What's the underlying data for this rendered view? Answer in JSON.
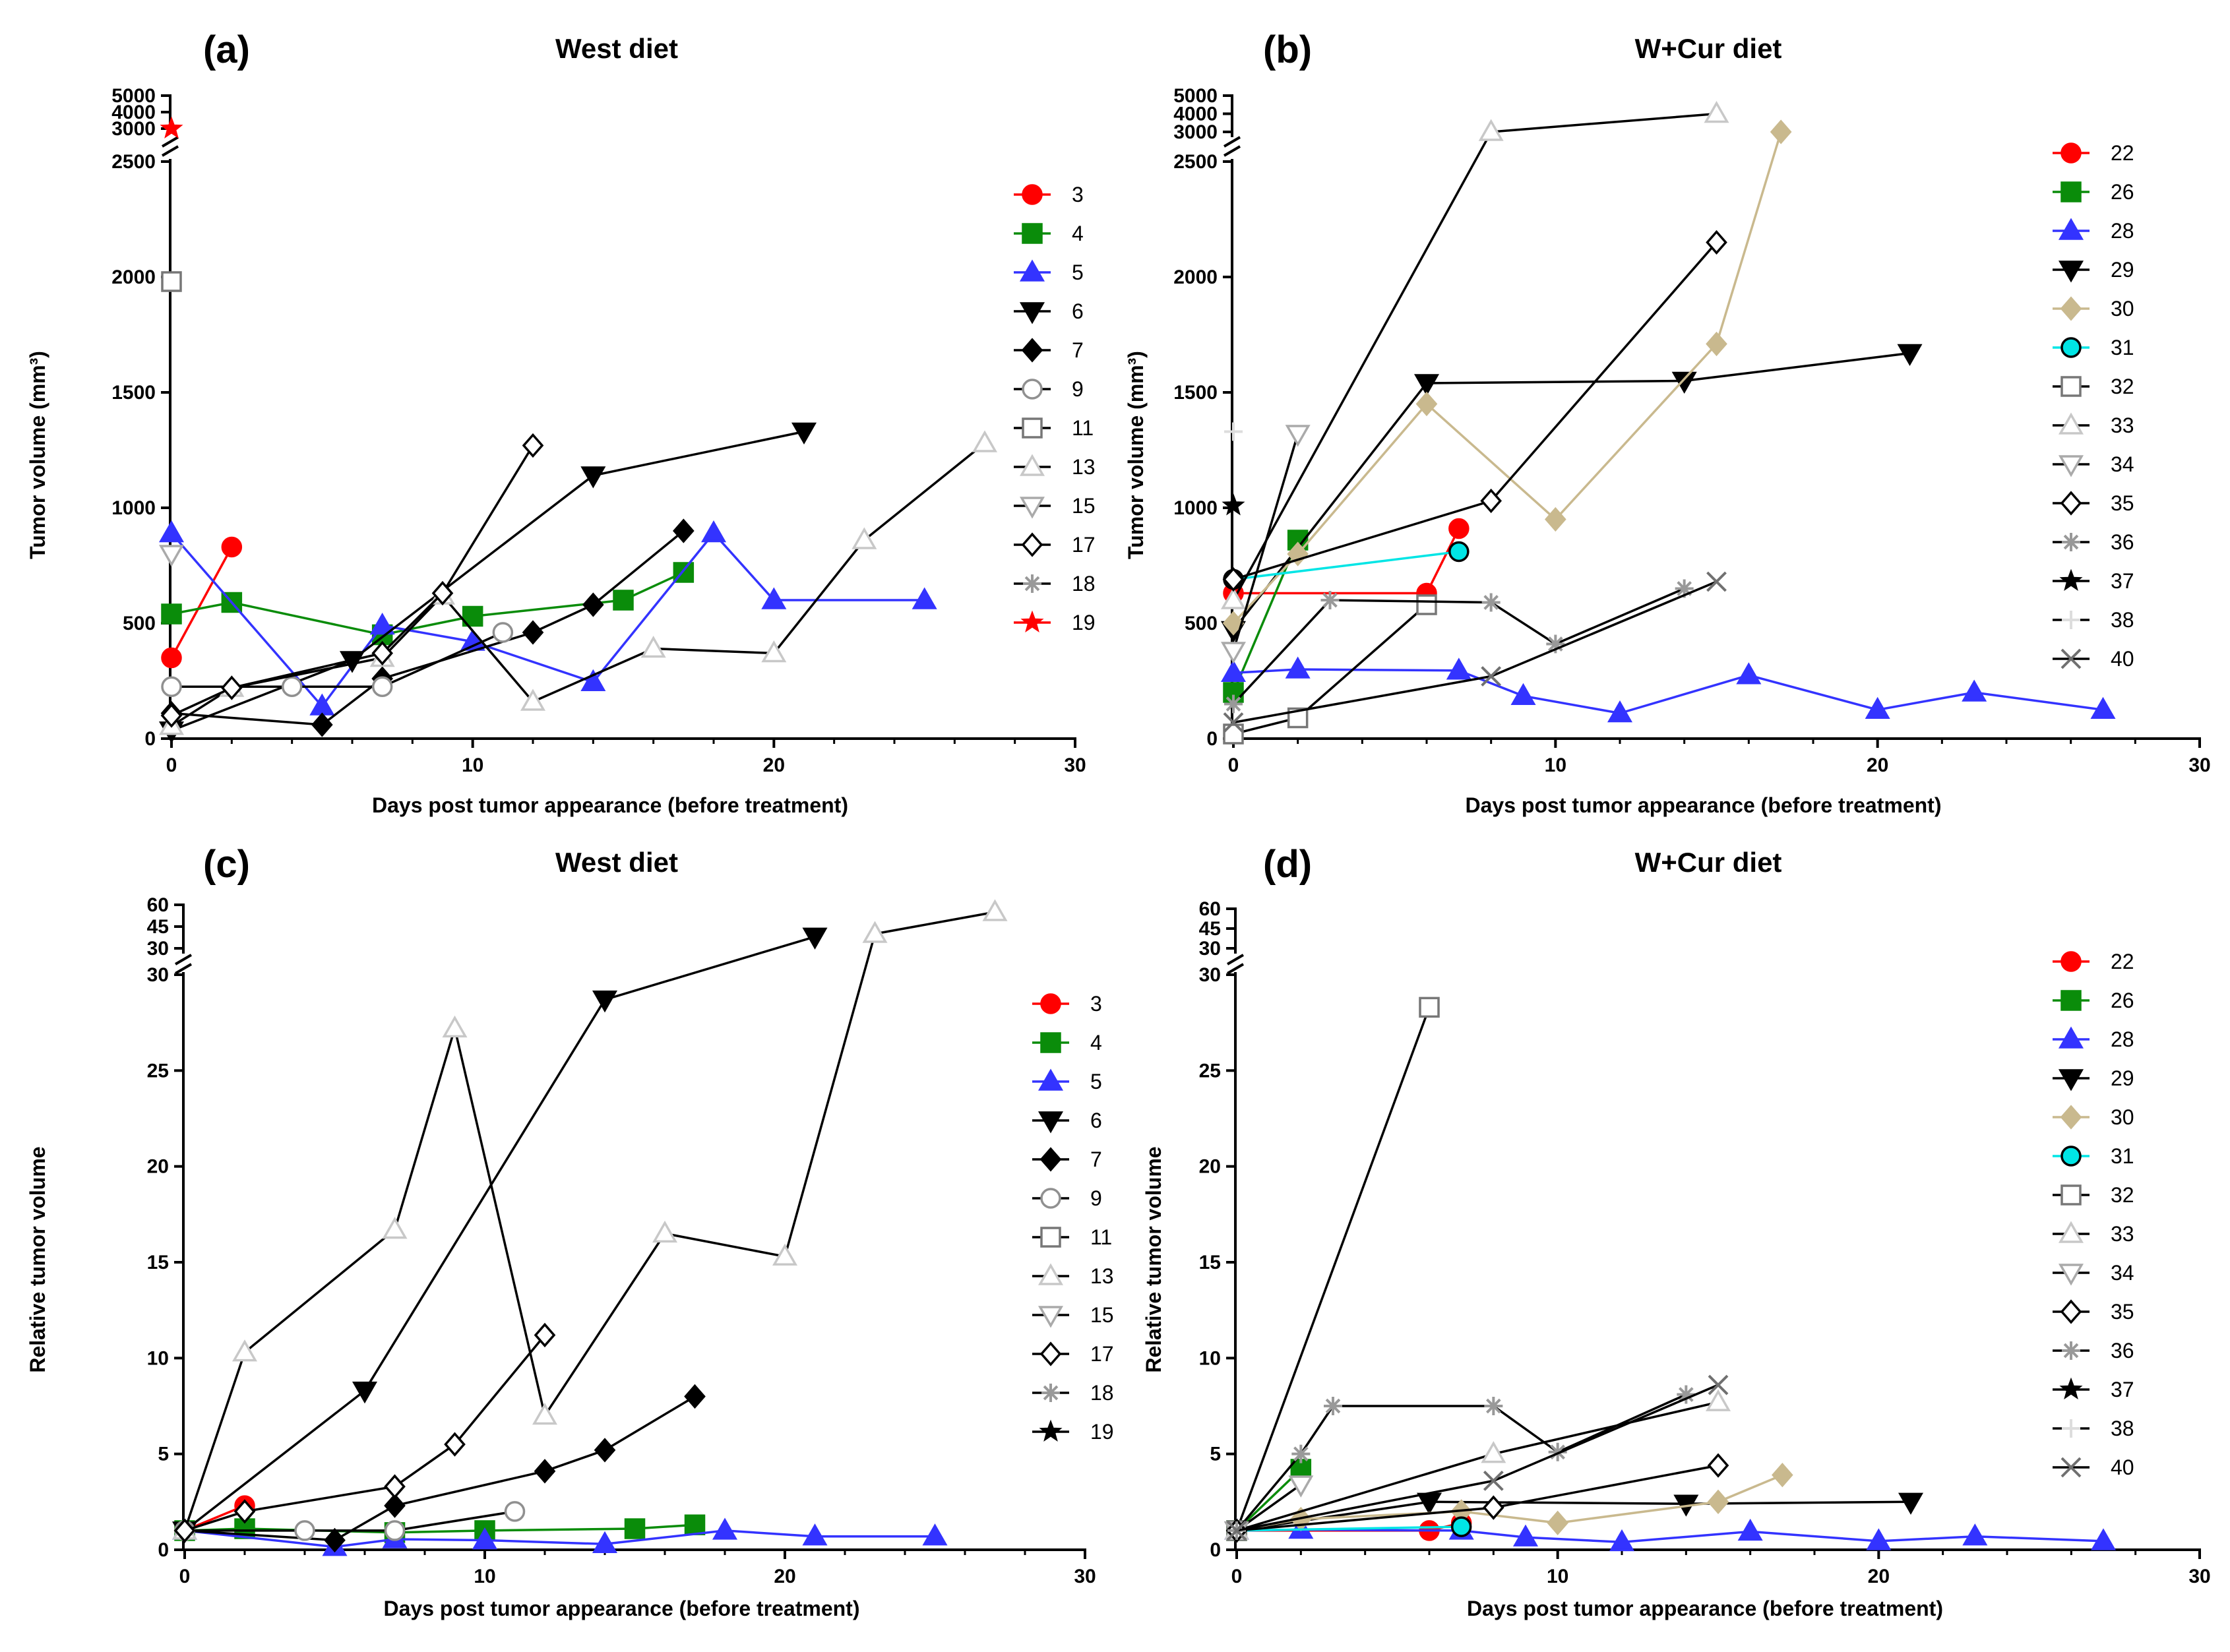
{
  "chart_data": [
    {
      "panel_label": "(a)",
      "type": "line",
      "title": "West diet",
      "xlabel": "Days post tumor appearance (before treatment)",
      "ylabel": "Tumor volume (mm³)",
      "xlim": [
        0,
        30
      ],
      "x_ticks": [
        "0",
        "10",
        "20",
        "30"
      ],
      "y_ticks_lower": [
        "0",
        "500",
        "1000",
        "1500",
        "2000",
        "2500"
      ],
      "y_ticks_upper": [
        "3000",
        "4000",
        "5000"
      ],
      "ylim_lower": [
        0,
        2500
      ],
      "ylim_upper": [
        3000,
        5000
      ],
      "series": [
        {
          "name": "3",
          "color": "#ff0000",
          "marker": "circle",
          "fill": true,
          "x": [
            0,
            2
          ],
          "y": [
            350,
            830
          ]
        },
        {
          "name": "4",
          "color": "#0a8c0a",
          "marker": "square",
          "fill": true,
          "x": [
            0,
            2,
            7,
            10,
            15,
            17
          ],
          "y": [
            540,
            590,
            450,
            530,
            600,
            720
          ]
        },
        {
          "name": "5",
          "color": "#3333ff",
          "marker": "triangle",
          "fill": true,
          "x": [
            0,
            5,
            7,
            10,
            14,
            18,
            20,
            25
          ],
          "y": [
            890,
            140,
            490,
            420,
            245,
            890,
            600,
            600
          ]
        },
        {
          "name": "6",
          "color": "#000000",
          "marker": "triangle-down",
          "fill": true,
          "x": [
            0,
            6,
            14,
            21
          ],
          "y": [
            35,
            340,
            1140,
            1330
          ]
        },
        {
          "name": "7",
          "color": "#000000",
          "marker": "diamond",
          "fill": true,
          "x": [
            0,
            5,
            7,
            12,
            14,
            17
          ],
          "y": [
            110,
            60,
            260,
            460,
            580,
            900
          ]
        },
        {
          "name": "9",
          "color": "#909090",
          "marker": "circle",
          "fill": false,
          "x": [
            0,
            4,
            7,
            11
          ],
          "y": [
            225,
            225,
            225,
            460
          ]
        },
        {
          "name": "11",
          "color": "#777777",
          "marker": "square",
          "fill": false,
          "x": [
            0
          ],
          "y": [
            1980
          ]
        },
        {
          "name": "13",
          "color": "#c8c8c8",
          "marker": "triangle",
          "fill": false,
          "x": [
            0,
            2,
            7,
            9,
            12,
            16,
            20,
            23,
            27
          ],
          "y": [
            55,
            220,
            350,
            620,
            160,
            390,
            370,
            860,
            1280
          ]
        },
        {
          "name": "15",
          "color": "#aaaaaa",
          "marker": "triangle-down",
          "fill": false,
          "x": [
            0
          ],
          "y": [
            800
          ]
        },
        {
          "name": "17",
          "color": "#000000",
          "marker": "diamond",
          "fill": false,
          "x": [
            0,
            2,
            7,
            9,
            12
          ],
          "y": [
            100,
            220,
            370,
            630,
            1270
          ]
        },
        {
          "name": "18",
          "color": "#999999",
          "marker": "asterisk",
          "fill": false,
          "x": [],
          "y": []
        },
        {
          "name": "19",
          "color": "#ff0000",
          "marker": "star",
          "fill": true,
          "x": [
            0
          ],
          "y": [
            3000
          ]
        }
      ]
    },
    {
      "panel_label": "(b)",
      "type": "line",
      "title": "W+Cur diet",
      "xlabel": "Days post tumor appearance (before treatment)",
      "ylabel": "Tumor volume (mm³)",
      "xlim": [
        0,
        30
      ],
      "x_ticks": [
        "0",
        "10",
        "20",
        "30"
      ],
      "y_ticks_lower": [
        "0",
        "500",
        "1000",
        "1500",
        "2000",
        "2500"
      ],
      "y_ticks_upper": [
        "3000",
        "4000",
        "5000"
      ],
      "ylim_lower": [
        0,
        2500
      ],
      "ylim_upper": [
        3000,
        5000
      ],
      "series": [
        {
          "name": "22",
          "color": "#ff0000",
          "marker": "circle",
          "fill": true,
          "x": [
            0,
            6,
            7
          ],
          "y": [
            630,
            630,
            910
          ]
        },
        {
          "name": "26",
          "color": "#0a8c0a",
          "marker": "square",
          "fill": true,
          "x": [
            0,
            2
          ],
          "y": [
            200,
            860
          ]
        },
        {
          "name": "28",
          "color": "#3333ff",
          "marker": "triangle",
          "fill": true,
          "x": [
            0,
            2,
            7,
            9,
            12,
            16,
            20,
            23,
            27
          ],
          "y": [
            285,
            300,
            295,
            185,
            110,
            275,
            125,
            200,
            125
          ]
        },
        {
          "name": "29",
          "color": "#000000",
          "marker": "triangle-down",
          "fill": true,
          "x": [
            0,
            6,
            14,
            21
          ],
          "y": [
            470,
            1540,
            1550,
            1670
          ]
        },
        {
          "name": "30",
          "color": "#c9b98e",
          "marker": "diamond",
          "fill": true,
          "x": [
            0,
            2,
            6,
            10,
            15,
            17
          ],
          "y": [
            500,
            800,
            1450,
            950,
            1710,
            3000
          ]
        },
        {
          "name": "31",
          "color": "#00e5e5",
          "marker": "circle",
          "fill": true,
          "x": [
            0,
            7
          ],
          "y": [
            690,
            810
          ]
        },
        {
          "name": "32",
          "color": "#777777",
          "marker": "square",
          "fill": false,
          "x": [
            0,
            2,
            6
          ],
          "y": [
            20,
            90,
            580
          ]
        },
        {
          "name": "33",
          "color": "#c8c8c8",
          "marker": "triangle",
          "fill": false,
          "x": [
            0,
            8,
            15
          ],
          "y": [
            600,
            3000,
            4000
          ]
        },
        {
          "name": "34",
          "color": "#aaaaaa",
          "marker": "triangle-down",
          "fill": false,
          "x": [
            0,
            2
          ],
          "y": [
            380,
            1320
          ]
        },
        {
          "name": "35",
          "color": "#000000",
          "marker": "diamond",
          "fill": false,
          "x": [
            0,
            8,
            15
          ],
          "y": [
            690,
            1030,
            2150
          ]
        },
        {
          "name": "36",
          "color": "#999999",
          "marker": "asterisk",
          "fill": false,
          "x": [
            0,
            3,
            8,
            10,
            14
          ],
          "y": [
            150,
            600,
            590,
            410,
            650
          ]
        },
        {
          "name": "37",
          "color": "#000000",
          "marker": "star",
          "fill": true,
          "x": [
            0
          ],
          "y": [
            1010
          ]
        },
        {
          "name": "38",
          "color": "#dddddd",
          "marker": "plus",
          "fill": false,
          "x": [
            0
          ],
          "y": [
            1330
          ]
        },
        {
          "name": "40",
          "color": "#707070",
          "marker": "cross",
          "fill": false,
          "x": [
            0,
            8,
            15
          ],
          "y": [
            70,
            270,
            680
          ]
        }
      ]
    },
    {
      "panel_label": "(c)",
      "type": "line",
      "title": "West diet",
      "xlabel": "Days post tumor appearance (before treatment)",
      "ylabel": "Relative tumor volume",
      "xlim": [
        0,
        30
      ],
      "x_ticks": [
        "0",
        "10",
        "20",
        "30"
      ],
      "y_ticks_lower": [
        "0",
        "5",
        "10",
        "15",
        "20",
        "25",
        "30"
      ],
      "y_ticks_upper": [
        "30",
        "45",
        "60"
      ],
      "ylim_lower": [
        0,
        30
      ],
      "ylim_upper": [
        30,
        60
      ],
      "series": [
        {
          "name": "3",
          "color": "#ff0000",
          "marker": "circle",
          "fill": true,
          "x": [
            0,
            2
          ],
          "y": [
            1,
            2.3
          ]
        },
        {
          "name": "4",
          "color": "#0a8c0a",
          "marker": "square",
          "fill": true,
          "x": [
            0,
            2,
            7,
            10,
            15,
            17
          ],
          "y": [
            1,
            1.1,
            0.9,
            1,
            1.1,
            1.3
          ]
        },
        {
          "name": "5",
          "color": "#3333ff",
          "marker": "triangle",
          "fill": true,
          "x": [
            0,
            5,
            7,
            10,
            14,
            18,
            21,
            25
          ],
          "y": [
            1,
            0.15,
            0.55,
            0.5,
            0.3,
            1,
            0.7,
            0.7
          ]
        },
        {
          "name": "6",
          "color": "#000000",
          "marker": "triangle-down",
          "fill": true,
          "x": [
            0,
            6,
            14,
            21
          ],
          "y": [
            1,
            8.3,
            28.7,
            38
          ]
        },
        {
          "name": "7",
          "color": "#000000",
          "marker": "diamond",
          "fill": true,
          "x": [
            0,
            5,
            7,
            12,
            14,
            17
          ],
          "y": [
            1,
            0.5,
            2.3,
            4.1,
            5.2,
            8
          ]
        },
        {
          "name": "9",
          "color": "#909090",
          "marker": "circle",
          "fill": false,
          "x": [
            0,
            4,
            7,
            11
          ],
          "y": [
            1,
            1,
            1,
            2
          ]
        },
        {
          "name": "11",
          "color": "#777777",
          "marker": "square",
          "fill": false,
          "x": [],
          "y": []
        },
        {
          "name": "13",
          "color": "#c8c8c8",
          "marker": "triangle",
          "fill": false,
          "x": [
            0,
            2,
            7,
            9,
            12,
            16,
            20,
            23,
            27
          ],
          "y": [
            1,
            10.3,
            16.7,
            27.2,
            7,
            16.5,
            15.3,
            40,
            55
          ]
        },
        {
          "name": "15",
          "color": "#aaaaaa",
          "marker": "triangle-down",
          "fill": false,
          "x": [],
          "y": []
        },
        {
          "name": "17",
          "color": "#000000",
          "marker": "diamond",
          "fill": false,
          "x": [
            0,
            2,
            7,
            9,
            12
          ],
          "y": [
            1,
            2,
            3.3,
            5.5,
            11.2
          ]
        },
        {
          "name": "18",
          "color": "#999999",
          "marker": "asterisk",
          "fill": false,
          "x": [],
          "y": []
        },
        {
          "name": "19",
          "color": "#000000",
          "marker": "star",
          "fill": true,
          "x": [],
          "y": []
        }
      ]
    },
    {
      "panel_label": "(d)",
      "type": "line",
      "title": "W+Cur diet",
      "xlabel": "Days post tumor appearance (before treatment)",
      "ylabel": "Relative tumor volume",
      "xlim": [
        0,
        30
      ],
      "x_ticks": [
        "0",
        "10",
        "20",
        "30"
      ],
      "y_ticks_lower": [
        "0",
        "5",
        "10",
        "15",
        "20",
        "25",
        "30"
      ],
      "y_ticks_upper": [
        "30",
        "45",
        "60"
      ],
      "ylim_lower": [
        0,
        30
      ],
      "ylim_upper": [
        30,
        60
      ],
      "series": [
        {
          "name": "22",
          "color": "#ff0000",
          "marker": "circle",
          "fill": true,
          "x": [
            0,
            6,
            7
          ],
          "y": [
            1,
            1,
            1.4
          ]
        },
        {
          "name": "26",
          "color": "#0a8c0a",
          "marker": "square",
          "fill": true,
          "x": [
            0,
            2
          ],
          "y": [
            1,
            4.2
          ]
        },
        {
          "name": "28",
          "color": "#3333ff",
          "marker": "triangle",
          "fill": true,
          "x": [
            0,
            2,
            7,
            9,
            12,
            16,
            20,
            23,
            27
          ],
          "y": [
            1,
            1.05,
            1,
            0.65,
            0.4,
            0.95,
            0.45,
            0.7,
            0.45
          ]
        },
        {
          "name": "29",
          "color": "#000000",
          "marker": "triangle-down",
          "fill": true,
          "x": [
            0,
            6,
            14,
            21
          ],
          "y": [
            1,
            2.5,
            2.4,
            2.5
          ]
        },
        {
          "name": "30",
          "color": "#c9b98e",
          "marker": "diamond",
          "fill": true,
          "x": [
            0,
            2,
            7,
            10,
            15,
            17
          ],
          "y": [
            1,
            1.6,
            2,
            1.4,
            2.5,
            3.9
          ]
        },
        {
          "name": "31",
          "color": "#00e5e5",
          "marker": "circle",
          "fill": true,
          "x": [
            0,
            7
          ],
          "y": [
            1,
            1.2
          ]
        },
        {
          "name": "32",
          "color": "#777777",
          "marker": "square",
          "fill": false,
          "x": [
            0,
            6
          ],
          "y": [
            1,
            28.3
          ]
        },
        {
          "name": "33",
          "color": "#c8c8c8",
          "marker": "triangle",
          "fill": false,
          "x": [
            0,
            8,
            15
          ],
          "y": [
            1,
            5,
            7.7
          ]
        },
        {
          "name": "34",
          "color": "#aaaaaa",
          "marker": "triangle-down",
          "fill": false,
          "x": [
            0,
            2
          ],
          "y": [
            1,
            3.4
          ]
        },
        {
          "name": "35",
          "color": "#000000",
          "marker": "diamond",
          "fill": false,
          "x": [
            0,
            8,
            15
          ],
          "y": [
            1,
            2.2,
            4.4
          ]
        },
        {
          "name": "36",
          "color": "#999999",
          "marker": "asterisk",
          "fill": false,
          "x": [
            0,
            2,
            3,
            8,
            10,
            14
          ],
          "y": [
            1,
            5,
            7.5,
            7.5,
            5.1,
            8.1
          ]
        },
        {
          "name": "37",
          "color": "#000000",
          "marker": "star",
          "fill": true,
          "x": [],
          "y": []
        },
        {
          "name": "38",
          "color": "#dddddd",
          "marker": "plus",
          "fill": false,
          "x": [],
          "y": []
        },
        {
          "name": "40",
          "color": "#707070",
          "marker": "cross",
          "fill": false,
          "x": [
            0,
            8,
            15
          ],
          "y": [
            1,
            3.6,
            8.6
          ]
        }
      ]
    }
  ]
}
